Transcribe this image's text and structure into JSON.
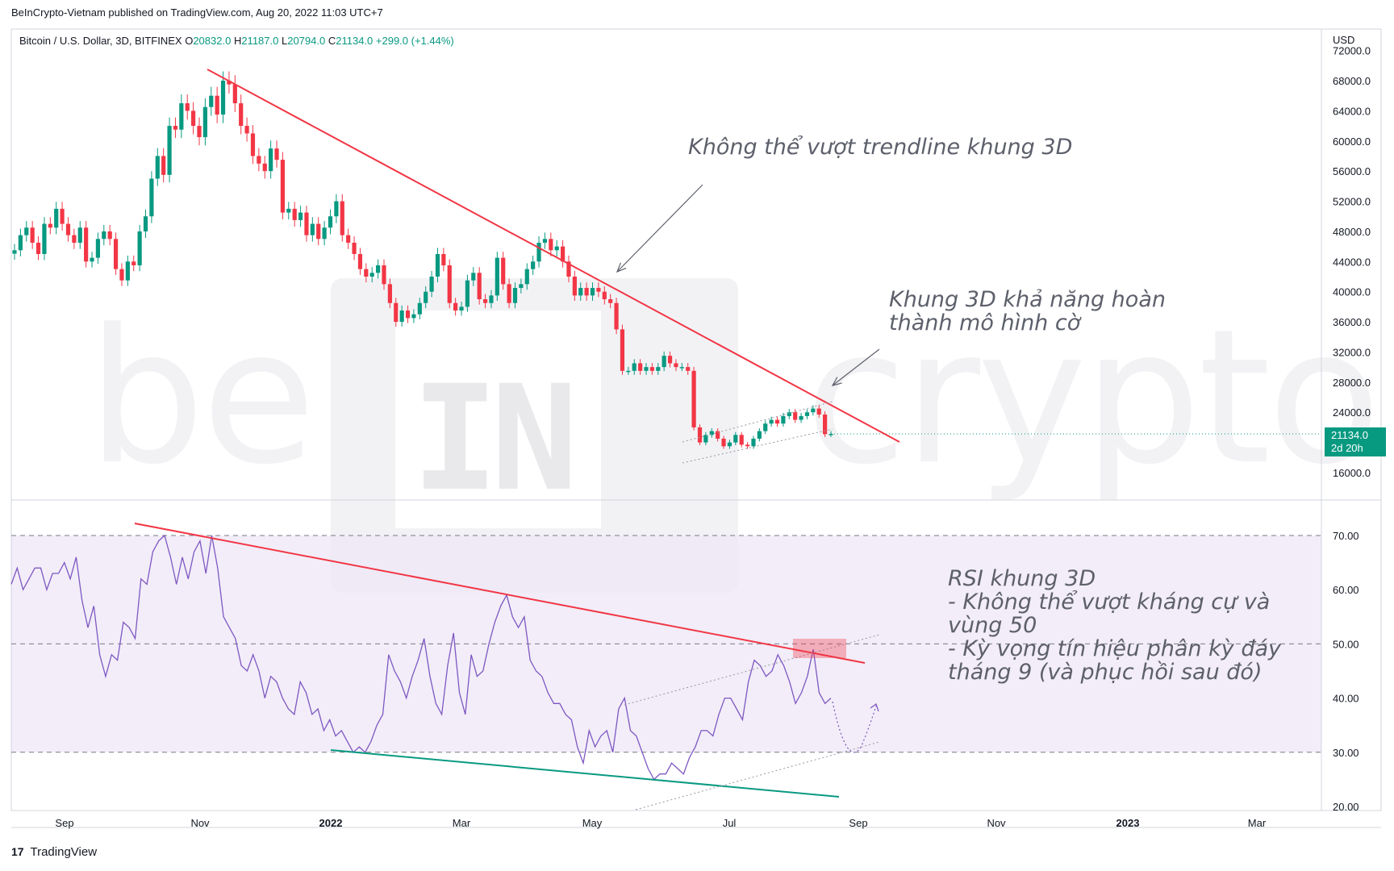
{
  "header": {
    "publish_line": "BeInCrypto-Vietnam published on TradingView.com, Aug 20, 2022 11:03 UTC+7",
    "symbol": "Bitcoin / U.S. Dollar, 3D, BITFINEX",
    "o_label": "O",
    "o_value": "20832.0",
    "h_label": "H",
    "h_value": "21187.0",
    "l_label": "L",
    "l_value": "20794.0",
    "c_label": "C",
    "c_value": "21134.0",
    "change": "+299.0 (+1.44%)"
  },
  "watermark": {
    "left": "be",
    "middle": "IN",
    "right": "crypto"
  },
  "annotations": {
    "trendline": "Không thể vượt trendline khung 3D",
    "flag_line1": "Khung 3D khả năng hoàn",
    "flag_line2": "thành mô hình cờ",
    "rsi_line1": "RSI khung 3D",
    "rsi_line2": "- Không thể vượt kháng cự và",
    "rsi_line3": "vùng 50",
    "rsi_line4": "- Kỳ vọng tín hiệu phân kỳ đáy",
    "rsi_line5": "tháng 9 (và phục hồi sau đó)"
  },
  "price_tag": {
    "price": "21134.0",
    "countdown": "2d 20h",
    "color": "#089981"
  },
  "footer": {
    "logo": "17",
    "brand": "TradingView"
  },
  "colors": {
    "up": "#089981",
    "down": "#f23645",
    "trend": "#f23645",
    "support": "#089981",
    "rsi_line": "#7e57c2",
    "rsi_band": "#ede7f6"
  },
  "chart_data": [
    {
      "type": "candlestick",
      "title": "Bitcoin / U.S. Dollar, 3D, BITFINEX",
      "y_axis_label": "USD",
      "y_ticks": [
        16000,
        20000,
        24000,
        28000,
        32000,
        36000,
        40000,
        44000,
        48000,
        52000,
        56000,
        60000,
        64000,
        68000,
        72000
      ],
      "x_ticks": [
        "Sep",
        "Nov",
        "2022",
        "Mar",
        "May",
        "Jul",
        "Sep",
        "Nov",
        "2023",
        "Mar"
      ],
      "close_series": [
        45500,
        47500,
        48500,
        46500,
        45000,
        49000,
        48500,
        51000,
        49000,
        47500,
        46500,
        48500,
        44000,
        44500,
        47000,
        48000,
        47000,
        43000,
        41500,
        44000,
        43500,
        48000,
        50000,
        55000,
        58000,
        55500,
        62000,
        61500,
        65000,
        64000,
        62000,
        60500,
        64500,
        66000,
        63500,
        68000,
        67500,
        65000,
        62000,
        61000,
        58000,
        57000,
        56000,
        59000,
        57500,
        50500,
        51000,
        49500,
        50500,
        47500,
        49000,
        47000,
        48500,
        50000,
        52000,
        47500,
        46500,
        45000,
        43000,
        42000,
        42500,
        43500,
        41000,
        38500,
        36000,
        37500,
        36500,
        37000,
        38500,
        40000,
        42000,
        45000,
        43500,
        38500,
        37500,
        38000,
        41500,
        42500,
        39000,
        38500,
        39500,
        44500,
        41000,
        38500,
        40500,
        41000,
        43000,
        44000,
        46500,
        47000,
        45500,
        46000,
        44000,
        42000,
        39500,
        40500,
        39500,
        40500,
        40000,
        39000,
        38500,
        35000,
        29500,
        29500,
        30500,
        29500,
        30000,
        29500,
        30000,
        31500,
        30500,
        30000,
        30000,
        29500,
        22000,
        20000,
        21000,
        21500,
        20500,
        19500,
        20000,
        21000,
        19700,
        19500,
        20500,
        21500,
        22500,
        23000,
        22500,
        23500,
        24000,
        23000,
        23500,
        24000,
        24500,
        23700,
        21100,
        21134
      ],
      "trendline": {
        "from_date": "Nov 2021",
        "from_price": 69000,
        "to_date": "Sep 2022",
        "to_price": 20000
      },
      "flag_channel": {
        "from": "Jun 2022",
        "to": "Aug 2022"
      }
    },
    {
      "type": "line",
      "title": "RSI",
      "y_ticks": [
        20,
        30,
        40,
        50,
        60,
        70
      ],
      "bands": [
        30,
        50,
        70
      ],
      "values": [
        61,
        64,
        60,
        62,
        64,
        64,
        60,
        63,
        63,
        65,
        62,
        66,
        58,
        53,
        57,
        48,
        44,
        48,
        47,
        54,
        53,
        51,
        62,
        61,
        67,
        69,
        70,
        66,
        61,
        66,
        62,
        67,
        69,
        63,
        70,
        64,
        55,
        53,
        51,
        46,
        45,
        48,
        45,
        40,
        44,
        43,
        40,
        38,
        37,
        43,
        41,
        37,
        38,
        34,
        36,
        33,
        34,
        32,
        30,
        31,
        30,
        32,
        35,
        37,
        48,
        45,
        43,
        40,
        44,
        47,
        51,
        44,
        39,
        37,
        46,
        52,
        41,
        37,
        48,
        44,
        45,
        50,
        54,
        57,
        59,
        55,
        53,
        55,
        47,
        45,
        44,
        41,
        39,
        39,
        37,
        36,
        31,
        28,
        34,
        31,
        33,
        34,
        30,
        38,
        40,
        34,
        33,
        30,
        27,
        25,
        26,
        26,
        28,
        27,
        26,
        29,
        31,
        34,
        34,
        33,
        37,
        40,
        40,
        38,
        36,
        43,
        47,
        46,
        44,
        45,
        48,
        46,
        43,
        39,
        41,
        44,
        49,
        41,
        39,
        40
      ]
    }
  ]
}
